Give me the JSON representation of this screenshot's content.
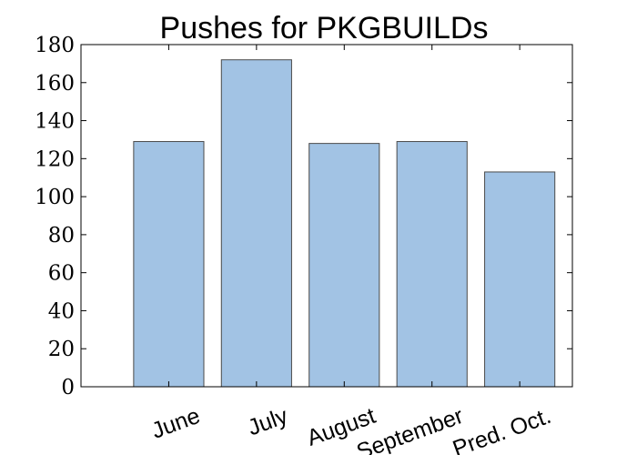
{
  "chart_data": {
    "type": "bar",
    "title": "Pushes for PKGBUILDs",
    "xlabel": "",
    "ylabel": "",
    "categories": [
      "June",
      "July",
      "August",
      "September",
      "Pred. Oct."
    ],
    "values": [
      129,
      172,
      128,
      129,
      113
    ],
    "ylim": [
      0,
      180
    ],
    "yticks": [
      0,
      20,
      40,
      60,
      80,
      100,
      120,
      140,
      160,
      180
    ],
    "bar_color": "#a2c3e4",
    "edge_color": "#4a4a4a",
    "xtick_rotation_deg": -20,
    "grid": false,
    "legend": "none"
  }
}
